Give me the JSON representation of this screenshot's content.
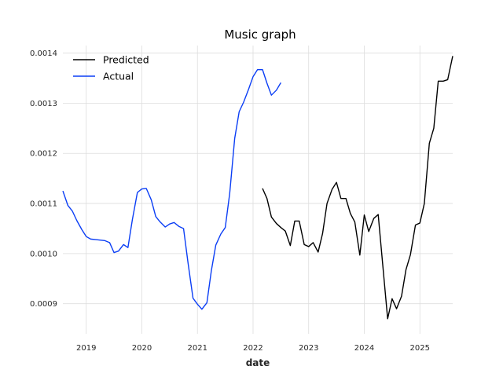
{
  "chart_data": {
    "type": "line",
    "title": "Music graph",
    "xlabel": "date",
    "ylabel": "",
    "xlim": [
      2018.58,
      2025.59
    ],
    "ylim": [
      0.00084,
      0.001415
    ],
    "x_ticks": [
      2019,
      2020,
      2021,
      2022,
      2023,
      2024,
      2025
    ],
    "y_ticks": [
      0.0009,
      0.001,
      0.0011,
      0.0012,
      0.0013,
      0.0014
    ],
    "grid": true,
    "legend_position": "top-left",
    "series": [
      {
        "name": "Predicted",
        "color": "#000000",
        "x": [
          2022.17,
          2022.25,
          2022.33,
          2022.42,
          2022.5,
          2022.58,
          2022.67,
          2022.75,
          2022.83,
          2022.92,
          2023.0,
          2023.08,
          2023.17,
          2023.25,
          2023.33,
          2023.42,
          2023.5,
          2023.58,
          2023.67,
          2023.75,
          2023.83,
          2023.92,
          2024.0,
          2024.08,
          2024.17,
          2024.25,
          2024.33,
          2024.42,
          2024.5,
          2024.58,
          2024.67,
          2024.75,
          2024.83,
          2024.92,
          2025.0,
          2025.08,
          2025.17,
          2025.25,
          2025.33,
          2025.42,
          2025.5,
          2025.59
        ],
        "values": [
          0.00113,
          0.00111,
          0.001073,
          0.00106,
          0.001052,
          0.001045,
          0.001016,
          0.001065,
          0.001065,
          0.001018,
          0.001014,
          0.001022,
          0.001003,
          0.00104,
          0.0011,
          0.001128,
          0.001142,
          0.00111,
          0.00111,
          0.00108,
          0.001063,
          0.000997,
          0.001077,
          0.001044,
          0.00107,
          0.001078,
          0.00098,
          0.00087,
          0.00091,
          0.00089,
          0.000915,
          0.000968,
          0.000998,
          0.001057,
          0.001061,
          0.0011,
          0.00122,
          0.00125,
          0.001344,
          0.001344,
          0.001347,
          0.001394
        ]
      },
      {
        "name": "Actual",
        "color": "#0b3ef5",
        "x": [
          2018.58,
          2018.67,
          2018.75,
          2018.83,
          2018.92,
          2019.0,
          2019.08,
          2019.17,
          2019.25,
          2019.33,
          2019.42,
          2019.5,
          2019.58,
          2019.67,
          2019.75,
          2019.83,
          2019.92,
          2020.0,
          2020.08,
          2020.17,
          2020.25,
          2020.33,
          2020.42,
          2020.5,
          2020.58,
          2020.67,
          2020.75,
          2020.83,
          2020.92,
          2021.0,
          2021.08,
          2021.17,
          2021.25,
          2021.33,
          2021.42,
          2021.5,
          2021.58,
          2021.67,
          2021.75,
          2021.83,
          2021.92,
          2022.0,
          2022.08,
          2022.17,
          2022.25,
          2022.33,
          2022.42,
          2022.5
        ],
        "values": [
          0.001125,
          0.001096,
          0.001085,
          0.001066,
          0.001048,
          0.001034,
          0.001029,
          0.001028,
          0.001027,
          0.001026,
          0.001022,
          0.001002,
          0.001005,
          0.001018,
          0.001012,
          0.001068,
          0.001122,
          0.001129,
          0.00113,
          0.001107,
          0.001074,
          0.001063,
          0.001053,
          0.001059,
          0.001062,
          0.001054,
          0.00105,
          0.000982,
          0.000911,
          0.000899,
          0.000889,
          0.000902,
          0.000966,
          0.001017,
          0.001039,
          0.001052,
          0.00112,
          0.00123,
          0.001283,
          0.001302,
          0.001328,
          0.001353,
          0.001367,
          0.001367,
          0.00134,
          0.001316,
          0.001326,
          0.001341
        ]
      }
    ]
  }
}
